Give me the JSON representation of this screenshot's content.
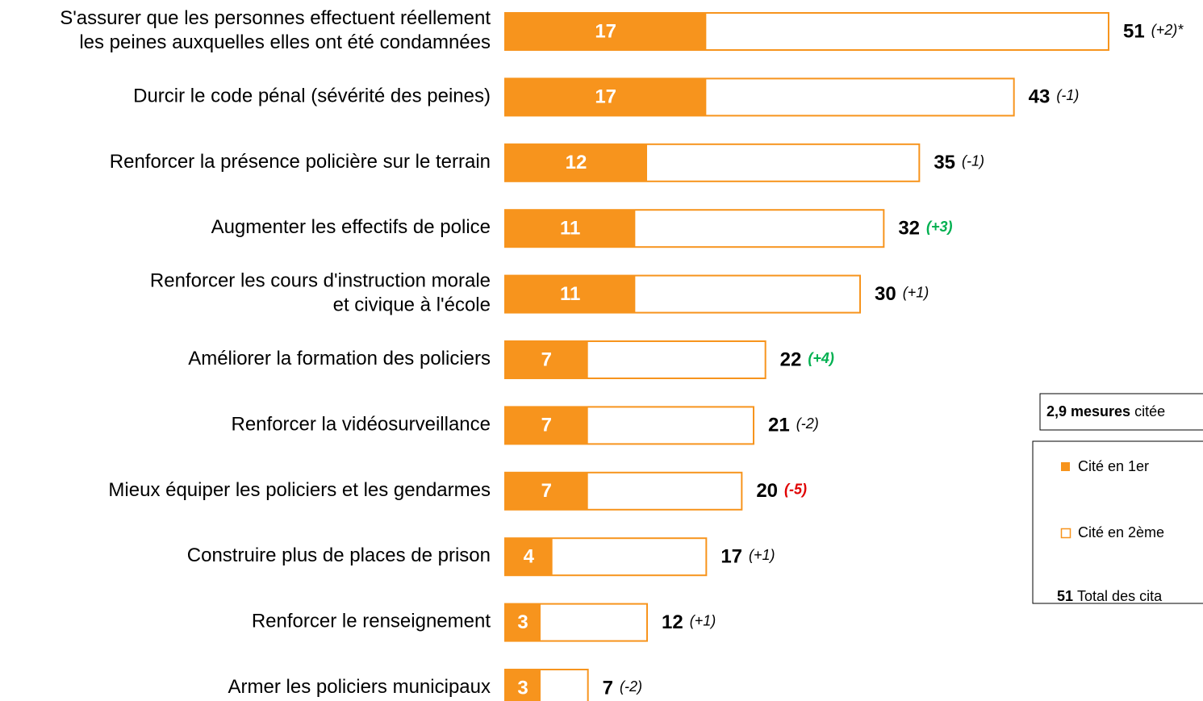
{
  "chart_data": {
    "type": "bar",
    "categories": [
      "S'assurer que les personnes effectuent réellement\nles peines auxquelles elles ont été condamnées",
      "Durcir le code pénal (sévérité des peines)",
      "Renforcer la présence policière sur le terrain",
      "Augmenter les effectifs de police",
      "Renforcer les cours d'instruction morale\net civique à l'école",
      "Améliorer la formation des policiers",
      "Renforcer la vidéosurveillance",
      "Mieux équiper les policiers et les gendarmes",
      "Construire plus de places de prison",
      "Renforcer le renseignement",
      "Armer les policiers municipaux"
    ],
    "series": [
      {
        "name": "Cité en 1er",
        "color": "#f7941d",
        "values": [
          17,
          17,
          12,
          11,
          11,
          7,
          7,
          7,
          4,
          3,
          3
        ]
      },
      {
        "name": "Total des cita",
        "color": "#f7941d",
        "values": [
          51,
          43,
          35,
          32,
          30,
          22,
          21,
          20,
          17,
          12,
          7
        ]
      }
    ],
    "changes": [
      2,
      -1,
      -1,
      3,
      1,
      4,
      -2,
      -5,
      1,
      1,
      -2
    ],
    "change_labels": [
      "(+2)*",
      "(-1)",
      "(-1)",
      "(+3)",
      "(+1)",
      "(+4)",
      "(-2)",
      "(-5)",
      "(+1)",
      "(+1)",
      "(-2)"
    ],
    "change_colors": [
      "#000000",
      "#000000",
      "#000000",
      "#00b050",
      "#000000",
      "#00b050",
      "#000000",
      "#e00000",
      "#000000",
      "#000000",
      "#000000"
    ],
    "note_bold": "2,9 mesures",
    "note_text": "citée",
    "legend_second": "Cité en 2ème",
    "legend_total_sample": "51"
  }
}
